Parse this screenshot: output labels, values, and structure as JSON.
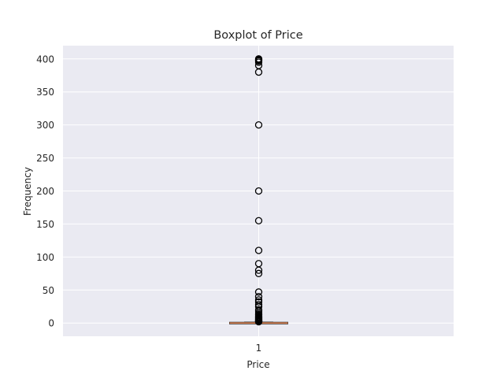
{
  "chart_data": {
    "type": "boxplot",
    "title": "Boxplot of Price",
    "xlabel": "Price",
    "ylabel": "Frequency",
    "ylim": [
      -20,
      420
    ],
    "yticks": [
      0,
      50,
      100,
      150,
      200,
      250,
      300,
      350,
      400
    ],
    "categories": [
      "1"
    ],
    "grid": true,
    "series": [
      {
        "box": {
          "q1": 0,
          "median": 0,
          "q3": 0.6,
          "whisker_low": 0,
          "whisker_high": 1.5
        },
        "outliers": [
          400,
          399,
          398,
          397,
          395,
          390,
          380,
          300,
          200,
          155,
          110,
          90,
          80,
          75,
          47,
          40,
          35,
          32,
          28,
          25,
          20,
          18,
          15,
          13,
          12,
          10,
          9,
          8,
          7,
          6,
          5,
          4,
          3.5,
          3,
          2.5,
          2
        ]
      }
    ],
    "colors": {
      "background": "#eaeaf2",
      "grid": "#ffffff",
      "median": "#dd8452",
      "box": "#262626",
      "outlier": "#000000"
    }
  }
}
